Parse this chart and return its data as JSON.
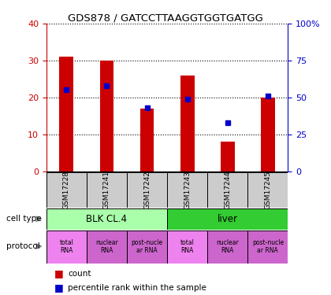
{
  "title": "GDS878 / GATCCTTAAGGTGGTGATGG",
  "samples": [
    "GSM17228",
    "GSM17241",
    "GSM17242",
    "GSM17243",
    "GSM17244",
    "GSM17245"
  ],
  "counts": [
    31,
    30,
    17,
    26,
    8,
    20
  ],
  "percentiles": [
    55,
    58,
    43,
    49,
    33,
    51
  ],
  "ylim_left": [
    0,
    40
  ],
  "ylim_right": [
    0,
    100
  ],
  "yticks_left": [
    0,
    10,
    20,
    30,
    40
  ],
  "yticks_right": [
    0,
    25,
    50,
    75,
    100
  ],
  "bar_color": "#cc0000",
  "dot_color": "#0000cc",
  "cell_types": [
    {
      "label": "BLK CL.4",
      "span": [
        0,
        3
      ],
      "color": "#aaffaa"
    },
    {
      "label": "liver",
      "span": [
        3,
        6
      ],
      "color": "#33cc33"
    }
  ],
  "protocols": [
    {
      "label": "total\nRNA",
      "color": "#ee82ee"
    },
    {
      "label": "nuclear\nRNA",
      "color": "#cc66cc"
    },
    {
      "label": "post-nucle\nar RNA",
      "color": "#cc66cc"
    },
    {
      "label": "total\nRNA",
      "color": "#ee82ee"
    },
    {
      "label": "nuclear\nRNA",
      "color": "#cc66cc"
    },
    {
      "label": "post-nucle\nar RNA",
      "color": "#cc66cc"
    }
  ],
  "legend_count_color": "#cc0000",
  "legend_pct_color": "#0000cc",
  "axis_left_color": "#cc0000",
  "axis_right_color": "#0000cc",
  "sample_box_color": "#cccccc",
  "background_color": "#ffffff"
}
